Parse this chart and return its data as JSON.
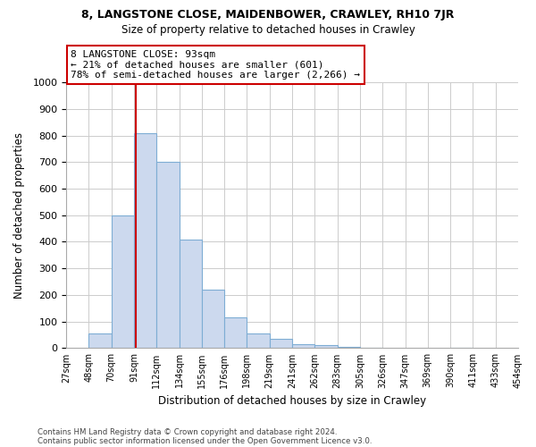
{
  "title": "8, LANGSTONE CLOSE, MAIDENBOWER, CRAWLEY, RH10 7JR",
  "subtitle": "Size of property relative to detached houses in Crawley",
  "xlabel": "Distribution of detached houses by size in Crawley",
  "ylabel": "Number of detached properties",
  "bin_labels": [
    "27sqm",
    "48sqm",
    "70sqm",
    "91sqm",
    "112sqm",
    "134sqm",
    "155sqm",
    "176sqm",
    "198sqm",
    "219sqm",
    "241sqm",
    "262sqm",
    "283sqm",
    "305sqm",
    "326sqm",
    "347sqm",
    "369sqm",
    "390sqm",
    "411sqm",
    "433sqm",
    "454sqm"
  ],
  "bar_heights": [
    0,
    55,
    500,
    810,
    700,
    410,
    220,
    115,
    55,
    35,
    15,
    12,
    5,
    2,
    0,
    0,
    0,
    2,
    0,
    0,
    0
  ],
  "bar_color": "#ccd9ee",
  "bar_edge_color": "#7eadd4",
  "property_line_color": "#cc0000",
  "annotation_line1": "8 LANGSTONE CLOSE: 93sqm",
  "annotation_line2": "← 21% of detached houses are smaller (601)",
  "annotation_line3": "78% of semi-detached houses are larger (2,266) →",
  "annotation_box_color": "#ffffff",
  "annotation_box_edge": "#cc0000",
  "ylim": [
    0,
    1000
  ],
  "yticks": [
    0,
    100,
    200,
    300,
    400,
    500,
    600,
    700,
    800,
    900,
    1000
  ],
  "footer1": "Contains HM Land Registry data © Crown copyright and database right 2024.",
  "footer2": "Contains public sector information licensed under the Open Government Licence v3.0.",
  "bg_color": "#ffffff",
  "grid_color": "#cccccc",
  "property_sqm": 93
}
